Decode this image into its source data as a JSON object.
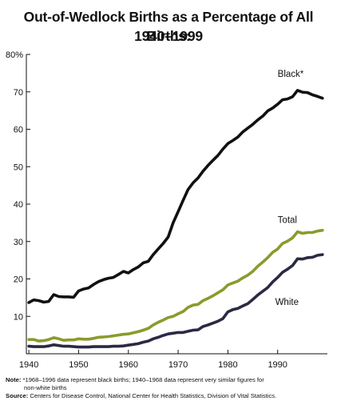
{
  "title_line1": "Out-of-Wedlock Births as a Percentage of All Births:",
  "title_line2": "1940–1999",
  "chart_data": {
    "type": "line",
    "title": "Out-of-Wedlock Births as a Percentage of All Births: 1940–1999",
    "xlabel": "",
    "ylabel": "",
    "xlim": [
      1940,
      1999
    ],
    "ylim": [
      0,
      80
    ],
    "x_ticks": [
      1940,
      1950,
      1960,
      1970,
      1980,
      1990
    ],
    "x_tick_labels": [
      "1940",
      "1950",
      "1960",
      "1970",
      "1980",
      "1990"
    ],
    "y_ticks": [
      10,
      20,
      30,
      40,
      50,
      60,
      70,
      80
    ],
    "y_tick_labels": [
      "10",
      "20",
      "30",
      "40",
      "50",
      "60",
      "70",
      "80%"
    ],
    "grid": false,
    "x": [
      1940,
      1941,
      1942,
      1943,
      1944,
      1945,
      1946,
      1947,
      1948,
      1949,
      1950,
      1951,
      1952,
      1953,
      1954,
      1955,
      1956,
      1957,
      1958,
      1959,
      1960,
      1961,
      1962,
      1963,
      1964,
      1965,
      1966,
      1967,
      1968,
      1969,
      1970,
      1971,
      1972,
      1973,
      1974,
      1975,
      1976,
      1977,
      1978,
      1979,
      1980,
      1981,
      1982,
      1983,
      1984,
      1985,
      1986,
      1987,
      1988,
      1989,
      1990,
      1991,
      1992,
      1993,
      1994,
      1995,
      1996,
      1997,
      1998,
      1999
    ],
    "series": [
      {
        "name": "Black*",
        "color": "#111111",
        "values": [
          13.7,
          14.4,
          14.2,
          13.8,
          14.0,
          15.8,
          15.3,
          15.2,
          15.2,
          15.1,
          16.8,
          17.3,
          17.6,
          18.5,
          19.3,
          19.8,
          20.2,
          20.4,
          21.2,
          22.0,
          21.6,
          22.5,
          23.2,
          24.3,
          24.7,
          26.5,
          28.0,
          29.5,
          31.2,
          35.0,
          38.0,
          41.0,
          43.9,
          45.7,
          47.0,
          48.8,
          50.3,
          51.7,
          53.0,
          54.7,
          56.2,
          57.0,
          57.9,
          59.3,
          60.3,
          61.3,
          62.5,
          63.5,
          64.9,
          65.7,
          66.7,
          67.9,
          68.1,
          68.7,
          70.4,
          69.9,
          69.8,
          69.2,
          68.8,
          68.3
        ]
      },
      {
        "name": "Total",
        "color": "#8c9a2c",
        "values": [
          3.8,
          3.8,
          3.4,
          3.5,
          3.8,
          4.3,
          4.0,
          3.6,
          3.7,
          3.7,
          4.0,
          3.9,
          3.9,
          4.1,
          4.4,
          4.5,
          4.6,
          4.8,
          5.0,
          5.2,
          5.3,
          5.6,
          5.9,
          6.3,
          6.8,
          7.7,
          8.4,
          9.0,
          9.7,
          10.0,
          10.7,
          11.3,
          12.4,
          13.0,
          13.2,
          14.2,
          14.8,
          15.5,
          16.3,
          17.1,
          18.4,
          18.9,
          19.4,
          20.3,
          21.0,
          22.0,
          23.4,
          24.5,
          25.7,
          27.1,
          28.0,
          29.5,
          30.1,
          31.0,
          32.6,
          32.2,
          32.4,
          32.4,
          32.8,
          33.0
        ]
      },
      {
        "name": "White",
        "color": "#2a2a44",
        "values": [
          2.0,
          1.9,
          1.9,
          1.9,
          2.1,
          2.4,
          2.2,
          2.0,
          2.0,
          1.9,
          1.8,
          1.8,
          1.8,
          1.9,
          1.9,
          1.9,
          1.9,
          2.0,
          2.0,
          2.1,
          2.3,
          2.5,
          2.7,
          3.1,
          3.4,
          4.0,
          4.4,
          4.9,
          5.3,
          5.5,
          5.7,
          5.7,
          6.0,
          6.3,
          6.4,
          7.3,
          7.7,
          8.2,
          8.7,
          9.4,
          11.2,
          11.8,
          12.1,
          12.8,
          13.4,
          14.5,
          15.7,
          16.7,
          17.7,
          19.2,
          20.4,
          21.8,
          22.6,
          23.6,
          25.4,
          25.3,
          25.7,
          25.8,
          26.3,
          26.5
        ]
      }
    ]
  },
  "notes": {
    "note_label": "Note:",
    "note_line1": " *1968–1996 data represent black births; 1940–1968 data represent very similar figures for",
    "note_line2": "non-white births",
    "source_label": "Source:",
    "source_text": " Centers for Disease Control, National Center for Health Statistics, Division of Vital Statistics."
  }
}
